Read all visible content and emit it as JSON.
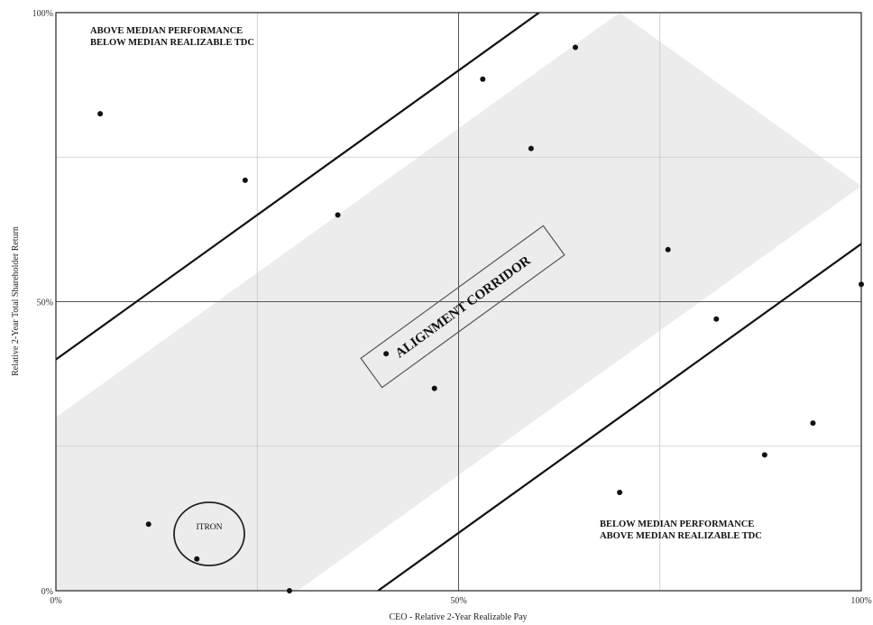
{
  "chart_data": {
    "type": "scatter",
    "xlabel": "CEO - Relative 2-Year Realizable Pay",
    "ylabel": "Relative 2-Year Total Shareholder Return",
    "xlim": [
      0,
      100
    ],
    "ylim": [
      0,
      100
    ],
    "x_ticks": [
      "0%",
      "50%",
      "100%"
    ],
    "y_ticks": [
      "0%",
      "50%",
      "100%"
    ],
    "grid": true,
    "minor_gridlines": [
      25,
      75
    ],
    "points": [
      {
        "x": 5.5,
        "y": 82.5
      },
      {
        "x": 23.5,
        "y": 71
      },
      {
        "x": 35,
        "y": 65
      },
      {
        "x": 53,
        "y": 88.5
      },
      {
        "x": 64.5,
        "y": 94
      },
      {
        "x": 59,
        "y": 76.5
      },
      {
        "x": 41,
        "y": 41
      },
      {
        "x": 47,
        "y": 35
      },
      {
        "x": 76,
        "y": 59
      },
      {
        "x": 82,
        "y": 47
      },
      {
        "x": 94,
        "y": 29
      },
      {
        "x": 88,
        "y": 23.5
      },
      {
        "x": 70,
        "y": 17
      },
      {
        "x": 11.5,
        "y": 11.5
      },
      {
        "x": 17.5,
        "y": 5.5
      },
      {
        "x": 29,
        "y": 0
      },
      {
        "x": 100,
        "y": 53
      }
    ],
    "outer_lines": [
      {
        "x1": 0,
        "y1": 40,
        "x2": 60,
        "y2": 100
      },
      {
        "x1": 40,
        "y1": 0,
        "x2": 100,
        "y2": 60
      }
    ],
    "corridor": {
      "upper": {
        "x1": 0,
        "y1": 30,
        "x2": 70,
        "y2": 100
      },
      "lower": {
        "x1": 30,
        "y1": 0,
        "x2": 100,
        "y2": 70
      }
    },
    "corridor_label": "ALIGNMENT CORRIDOR",
    "highlight": {
      "label": "ITRON",
      "x": 17.5,
      "y": 5.5
    },
    "regions": [
      {
        "line1": "ABOVE MEDIAN PERFORMANCE",
        "line2": "BELOW MEDIAN REALIZABLE TDC",
        "position": "top-left"
      },
      {
        "line1": "BELOW MEDIAN PERFORMANCE",
        "line2": "ABOVE MEDIAN REALIZABLE TDC",
        "position": "bottom-right"
      }
    ],
    "colors": {
      "corridor": "#ececec",
      "grid": "#c8c8c8",
      "line": "#111111",
      "point": "#111111"
    }
  }
}
